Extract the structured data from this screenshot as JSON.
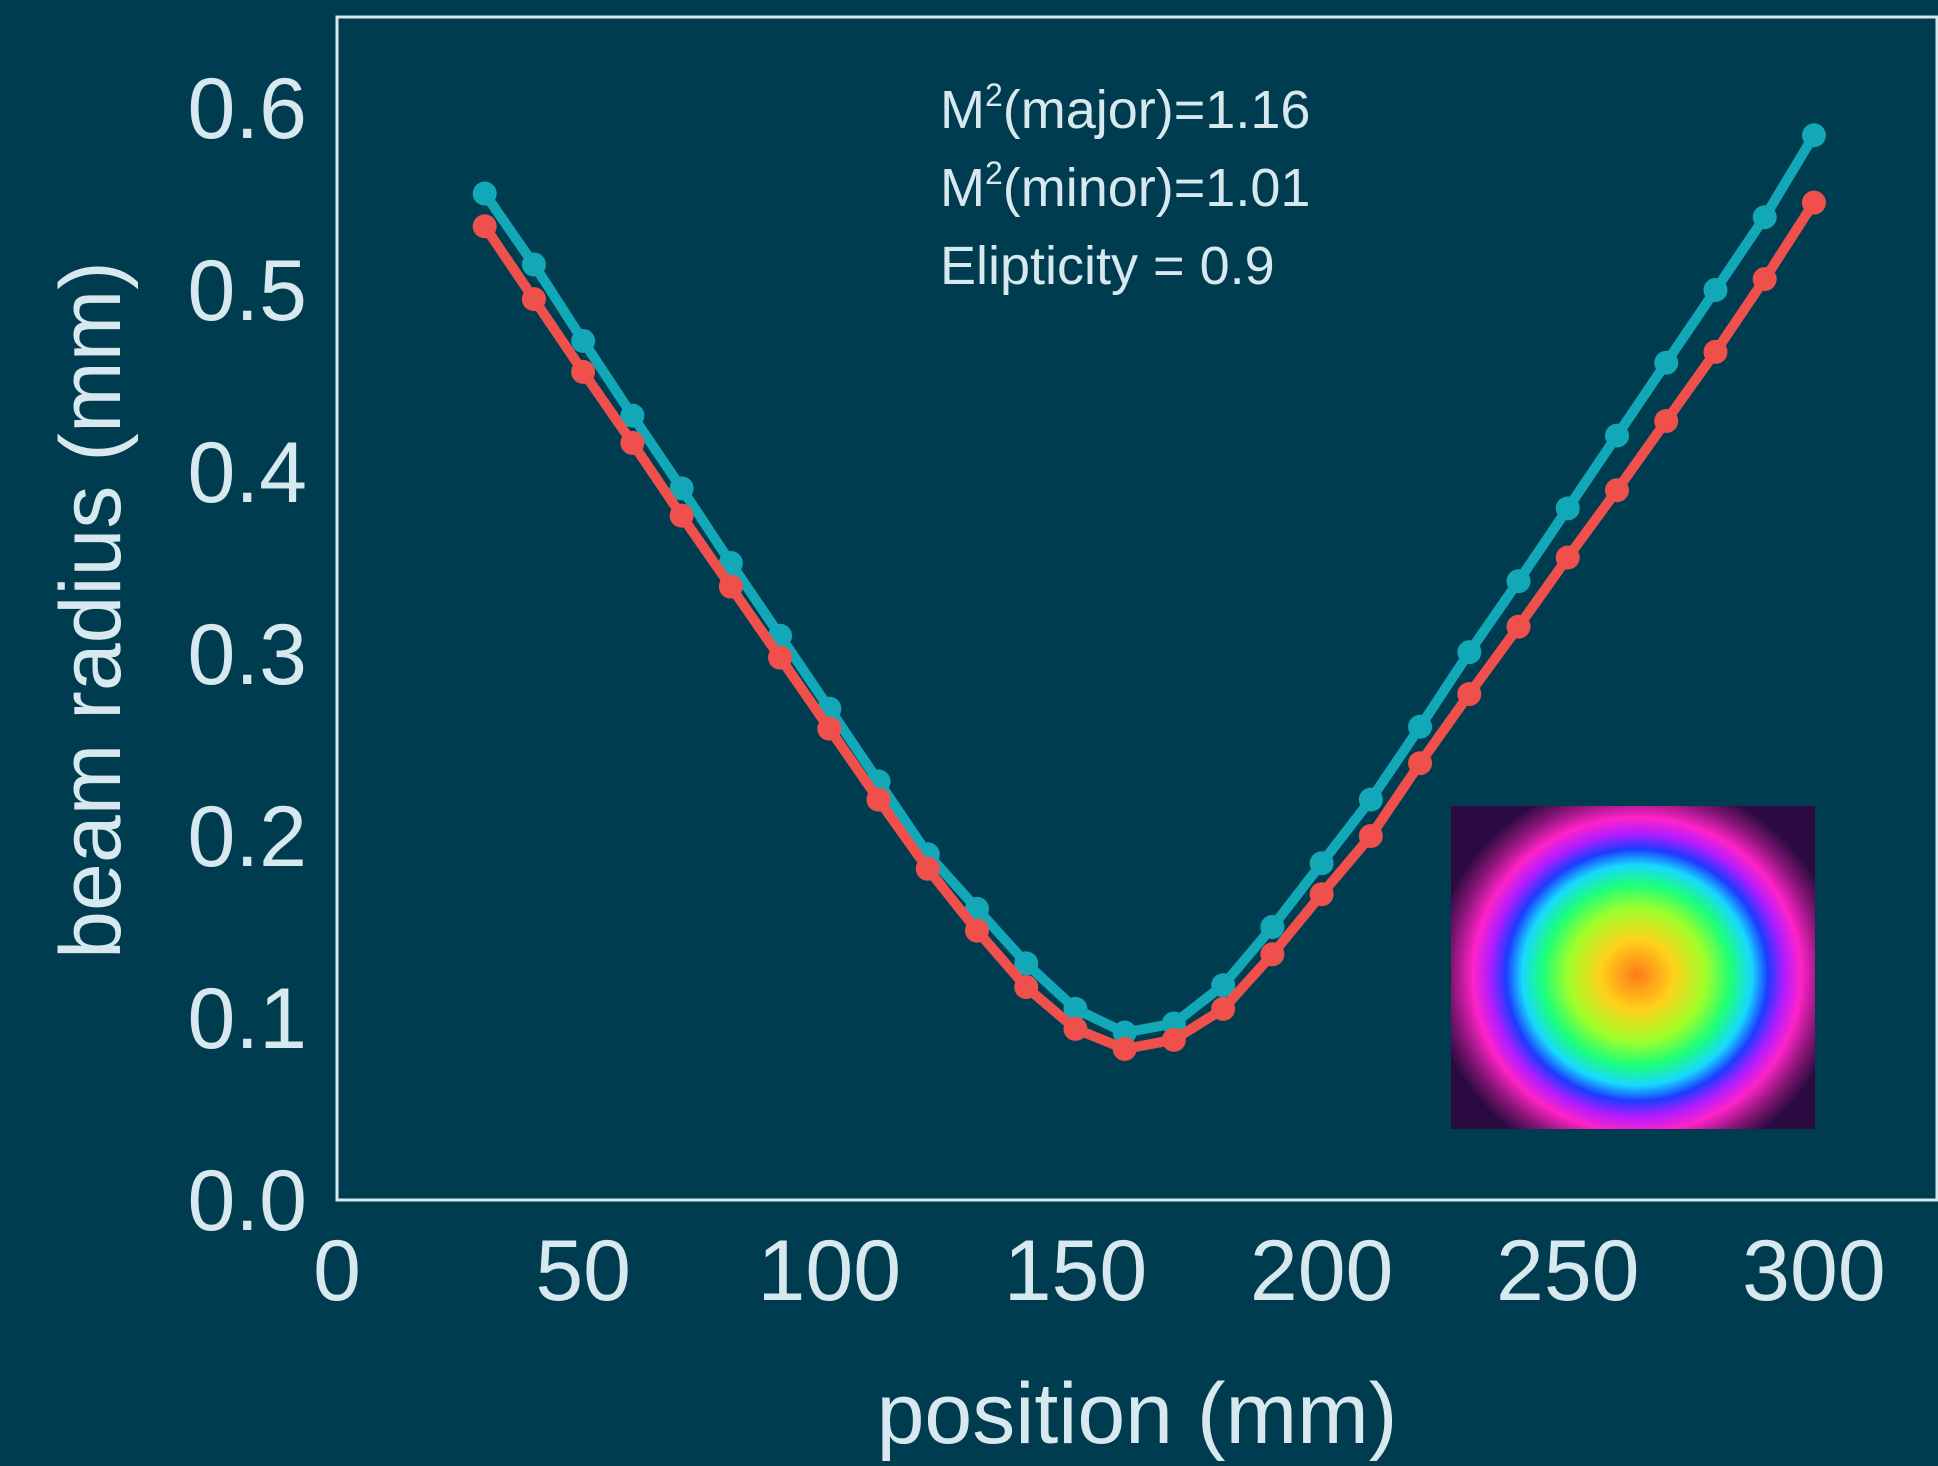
{
  "colors": {
    "background": "#003c50",
    "axes": "#d8e8ef",
    "text": "#d8e8ef",
    "major_series": "#12a8b8",
    "minor_series": "#f0504c"
  },
  "chart_data": {
    "type": "line",
    "xlabel": "position (mm)",
    "ylabel": "beam radius (mm)",
    "xlim": [
      0,
      325
    ],
    "ylim": [
      0,
      0.65
    ],
    "xticks": [
      "0",
      "50",
      "100",
      "150",
      "200",
      "250",
      "300"
    ],
    "yticks": [
      "0.0",
      "0.1",
      "0.2",
      "0.3",
      "0.4",
      "0.5",
      "0.6"
    ],
    "grid": false,
    "markers": true,
    "x": [
      30,
      40,
      50,
      60,
      70,
      80,
      90,
      100,
      110,
      120,
      130,
      140,
      150,
      160,
      170,
      180,
      190,
      200,
      210,
      220,
      230,
      240,
      250,
      260,
      270,
      280,
      290,
      300
    ],
    "series": [
      {
        "values": [
          0.553,
          0.514,
          0.472,
          0.431,
          0.391,
          0.35,
          0.31,
          0.27,
          0.23,
          0.19,
          0.16,
          0.13,
          0.105,
          0.092,
          0.097,
          0.118,
          0.15,
          0.185,
          0.22,
          0.26,
          0.301,
          0.34,
          0.38,
          0.42,
          0.46,
          0.5,
          0.54,
          0.585
        ]
      },
      {
        "values": [
          0.535,
          0.495,
          0.455,
          0.416,
          0.376,
          0.337,
          0.298,
          0.259,
          0.22,
          0.182,
          0.148,
          0.117,
          0.094,
          0.083,
          0.088,
          0.105,
          0.135,
          0.168,
          0.2,
          0.24,
          0.278,
          0.315,
          0.353,
          0.39,
          0.428,
          0.466,
          0.506,
          0.548
        ]
      }
    ],
    "annotations": [
      {
        "prefix": "M",
        "superscript": "2",
        "text": "(major)=1.16"
      },
      {
        "prefix": "M",
        "superscript": "2",
        "text": "(minor)=1.01"
      },
      {
        "prefix": "",
        "superscript": "",
        "text": "Elipticity = 0.9"
      }
    ],
    "inset": "beam-profile-image"
  }
}
